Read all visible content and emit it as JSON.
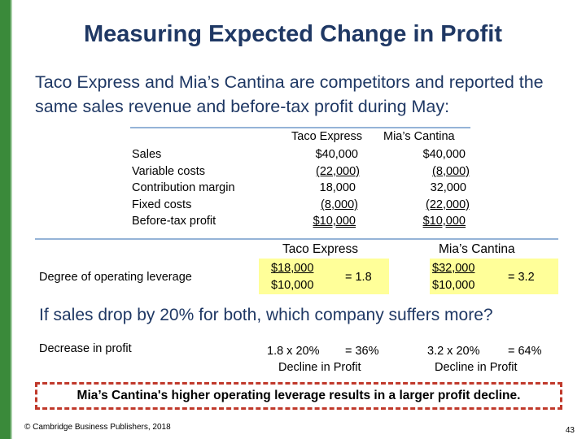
{
  "title": "Measuring Expected Change in Profit",
  "intro": "Taco Express and Mia’s Cantina are competitors and reported the same sales revenue and before-tax profit during May:",
  "income_table": {
    "headers": [
      "Taco Express",
      "Mia’s Cantina"
    ],
    "rows": [
      {
        "label": "Sales",
        "taco": "$40,000",
        "mia": "$40,000"
      },
      {
        "label": "Variable costs",
        "taco": "(22,000)",
        "mia": "(8,000)"
      },
      {
        "label": "Contribution margin",
        "taco": "18,000",
        "mia": "32,000"
      },
      {
        "label": "Fixed costs",
        "taco": "(8,000)",
        "mia": "(22,000)"
      },
      {
        "label": "Before-tax profit",
        "taco": "$10,000",
        "mia": "$10,000"
      }
    ]
  },
  "leverage": {
    "label": "Degree of operating leverage",
    "taco": {
      "header": "Taco Express",
      "numerator": "$18,000",
      "denominator": "$10,000",
      "result": "= 1.8"
    },
    "mia": {
      "header": "Mia’s Cantina",
      "numerator": "$32,000",
      "denominator": "$10,000",
      "result": "= 3.2"
    },
    "highlight_color": "#ffff99"
  },
  "question": "If sales drop by 20% for both, which company suffers more?",
  "decrease": {
    "label": "Decrease in profit",
    "taco_calc": "1.8 x 20%",
    "taco_result": "= 36%",
    "taco_note": "Decline in Profit",
    "mia_calc": "3.2 x 20%",
    "mia_result": "= 64%",
    "mia_note": "Decline in Profit"
  },
  "conclusion": "Mia’s Cantina's higher operating leverage results in a larger profit decline.",
  "footer": "© Cambridge Business Publishers, 2018",
  "page_number": "43",
  "colors": {
    "title": "#1f3864",
    "accent_bar": "#3a8a3a",
    "rule": "#95b3d7",
    "dashed_border": "#c0392b"
  }
}
